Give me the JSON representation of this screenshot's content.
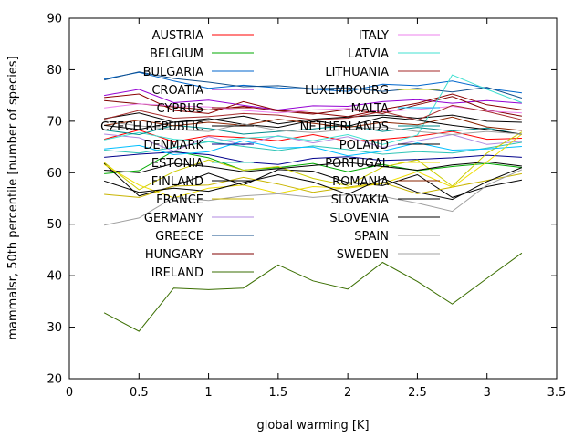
{
  "chart_data": {
    "type": "line",
    "xlabel": "global warming [K]",
    "ylabel": "mammalsr, 50th percentile [number of species]",
    "xlim": [
      0,
      3.5
    ],
    "ylim": [
      20,
      90
    ],
    "xticks": [
      0,
      0.5,
      1,
      1.5,
      2,
      2.5,
      3,
      3.5
    ],
    "yticks": [
      20,
      30,
      40,
      50,
      60,
      70,
      80,
      90
    ],
    "x": [
      0.25,
      0.5,
      0.75,
      1.0,
      1.25,
      1.5,
      1.75,
      2.0,
      2.25,
      2.5,
      2.75,
      3.0,
      3.25
    ],
    "legend_placement": "inside-top, two columns",
    "series": [
      {
        "name": "AUSTRIA",
        "color": "#ff0000",
        "values": [
          66.5,
          68.3,
          66.0,
          67.2,
          66.8,
          66.2,
          67.4,
          66.1,
          66.5,
          67.1,
          68.0,
          66.5,
          66.7
        ]
      },
      {
        "name": "BELGIUM",
        "color": "#00aa00",
        "values": [
          59.8,
          60.4,
          64.2,
          62.9,
          60.5,
          61.0,
          61.8,
          60.2,
          61.6,
          60.4,
          61.2,
          61.8,
          61.0
        ]
      },
      {
        "name": "BULGARIA",
        "color": "#0066cc",
        "values": [
          78.2,
          79.5,
          77.8,
          76.4,
          77.0,
          76.5,
          76.2,
          75.8,
          77.2,
          76.9,
          77.8,
          76.4,
          75.5
        ]
      },
      {
        "name": "CROATIA",
        "color": "#9400d3",
        "values": [
          75.0,
          76.2,
          73.6,
          74.1,
          73.1,
          72.2,
          73.0,
          72.9,
          73.8,
          74.2,
          73.5,
          74.0,
          73.5
        ]
      },
      {
        "name": "CYPRUS",
        "color": "#8b0000",
        "values": [
          74.6,
          75.3,
          72.1,
          71.5,
          73.8,
          72.1,
          71.6,
          70.9,
          72.3,
          73.5,
          75.3,
          73.2,
          72.2
        ]
      },
      {
        "name": "CZECH_REPUBLIC",
        "color": "#000000",
        "values": [
          70.5,
          71.6,
          69.8,
          70.2,
          71.0,
          69.5,
          70.4,
          70.8,
          71.2,
          70.6,
          71.2,
          70.0,
          69.8
        ]
      },
      {
        "name": "DENMARK",
        "color": "#00008b",
        "values": [
          63.0,
          63.6,
          64.0,
          63.5,
          62.1,
          61.6,
          62.8,
          63.1,
          62.4,
          62.6,
          62.9,
          63.4,
          63.0
        ]
      },
      {
        "name": "ESTONIA",
        "color": "#2ec4b6",
        "values": [
          64.4,
          63.8,
          64.9,
          66.0,
          65.1,
          64.3,
          65.2,
          64.5,
          63.6,
          64.1,
          63.8,
          64.8,
          65.9
        ]
      },
      {
        "name": "FINLAND",
        "color": "#000000",
        "values": [
          61.8,
          55.5,
          57.4,
          59.9,
          57.6,
          60.6,
          60.3,
          58.1,
          57.5,
          59.6,
          55.2,
          57.3,
          58.6
        ]
      },
      {
        "name": "FRANCE",
        "color": "#c8b400",
        "values": [
          55.8,
          55.2,
          57.4,
          57.6,
          59.1,
          57.8,
          56.2,
          57.2,
          58.1,
          55.9,
          57.2,
          58.5,
          59.8
        ]
      },
      {
        "name": "GERMANY",
        "color": "#b088e0",
        "values": [
          67.5,
          66.8,
          64.2,
          67.0,
          65.4,
          67.2,
          65.8,
          67.0,
          64.9,
          66.2,
          67.4,
          65.5,
          66.1
        ]
      },
      {
        "name": "GREECE",
        "color": "#104e8b",
        "values": [
          78.0,
          79.6,
          78.3,
          77.6,
          76.7,
          76.9,
          76.3,
          76.5,
          75.8,
          76.4,
          75.7,
          76.6,
          74.5
        ]
      },
      {
        "name": "HUNGARY",
        "color": "#800000",
        "values": [
          74.0,
          73.4,
          72.8,
          72.2,
          72.9,
          72.0,
          71.4,
          72.3,
          71.5,
          73.2,
          74.8,
          72.2,
          71.0
        ]
      },
      {
        "name": "IRELAND",
        "color": "#3a6e00",
        "values": [
          32.8,
          29.2,
          37.6,
          37.3,
          37.6,
          42.1,
          39.0,
          37.4,
          42.6,
          38.9,
          34.5,
          39.5,
          44.4
        ]
      },
      {
        "name": "ITALY",
        "color": "#ee82ee",
        "values": [
          72.6,
          73.4,
          73.0,
          72.8,
          72.1,
          71.6,
          72.2,
          72.5,
          71.9,
          72.3,
          72.9,
          72.0,
          71.6
        ]
      },
      {
        "name": "LATVIA",
        "color": "#40e0d0",
        "values": [
          66.4,
          67.8,
          66.5,
          66.0,
          66.7,
          67.1,
          66.2,
          67.4,
          65.5,
          67.3,
          79.0,
          76.2,
          73.6
        ]
      },
      {
        "name": "LITHUANIA",
        "color": "#a52a2a",
        "values": [
          70.4,
          72.1,
          70.6,
          70.9,
          71.5,
          71.2,
          70.3,
          70.6,
          71.9,
          70.2,
          73.1,
          71.9,
          70.3
        ]
      },
      {
        "name": "LUXEMBOURG",
        "color": "#cccc00",
        "values": [
          62.0,
          56.7,
          60.2,
          62.5,
          60.5,
          61.2,
          58.9,
          57.5,
          61.1,
          62.5,
          57.4,
          63.8,
          67.9
        ]
      },
      {
        "name": "MALTA",
        "color": "#00bfff",
        "values": [
          64.6,
          65.3,
          63.5,
          64.1,
          66.2,
          64.8,
          65.0,
          63.3,
          64.2,
          65.8,
          64.4,
          64.6,
          65.1
        ]
      },
      {
        "name": "NETHERLANDS",
        "color": "#008b8b",
        "values": [
          68.3,
          67.4,
          69.2,
          68.6,
          67.5,
          68.0,
          68.5,
          69.2,
          68.0,
          68.8,
          68.1,
          68.7,
          67.4
        ]
      },
      {
        "name": "POLAND",
        "color": "#000000",
        "values": [
          60.5,
          60.0,
          61.8,
          61.2,
          60.2,
          60.8,
          61.4,
          62.0,
          61.2,
          60.5,
          61.5,
          62.1,
          61.3
        ]
      },
      {
        "name": "PORTUGAL",
        "color": "#eedd00",
        "values": [
          61.6,
          57.6,
          55.1,
          57.0,
          57.6,
          56.0,
          57.3,
          57.0,
          57.9,
          60.2,
          57.2,
          62.1,
          67.5
        ]
      },
      {
        "name": "ROMANIA",
        "color": "#8b2500",
        "values": [
          69.2,
          70.2,
          69.1,
          69.8,
          69.2,
          70.4,
          69.6,
          68.8,
          69.8,
          69.3,
          70.8,
          68.9,
          68.2
        ]
      },
      {
        "name": "SLOVAKIA",
        "color": "#000000",
        "values": [
          58.4,
          56.2,
          57.0,
          56.4,
          58.1,
          59.6,
          58.2,
          55.8,
          58.9,
          56.2,
          54.8,
          58.3,
          61.0
        ]
      },
      {
        "name": "SLOVENIA",
        "color": "#000000",
        "values": [
          69.2,
          68.4,
          69.8,
          70.5,
          69.4,
          68.8,
          70.2,
          69.0,
          70.8,
          70.2,
          69.2,
          68.4,
          67.5
        ]
      },
      {
        "name": "SPAIN",
        "color": "#a0a0a0",
        "values": [
          70.0,
          69.1,
          68.4,
          68.0,
          69.5,
          68.2,
          67.8,
          68.4,
          68.9,
          68.0,
          67.4,
          68.0,
          67.5
        ]
      },
      {
        "name": "SWEDEN",
        "color": "#a0a0a0",
        "values": [
          49.8,
          51.2,
          55.2,
          54.6,
          55.5,
          55.9,
          55.2,
          55.7,
          55.4,
          54.1,
          52.5,
          57.6,
          60.6
        ]
      }
    ]
  }
}
